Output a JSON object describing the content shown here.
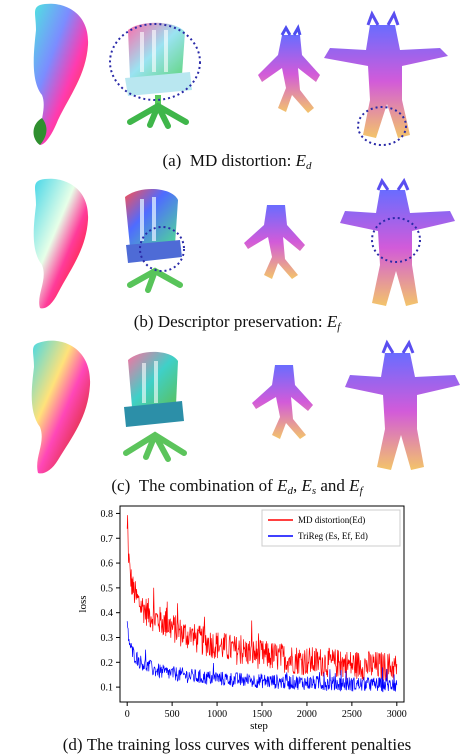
{
  "panels": [
    {
      "label": "(a)",
      "text": "MD distortion: ",
      "sym": "E",
      "sub": "d"
    },
    {
      "label": "(b)",
      "text": "Descriptor preservation: ",
      "sym": "E",
      "sub": "f"
    },
    {
      "label": "(c)",
      "text": "The combination of ",
      "sym1": "E",
      "sub1": "d",
      "sep1": ", ",
      "sym2": "E",
      "sub2": "s",
      "sep2": " and ",
      "sym3": "E",
      "sub3": "f"
    },
    {
      "label": "(d)",
      "text": "The training loss curves with different penalties"
    }
  ],
  "chart_data": {
    "type": "line",
    "xlabel": "step",
    "ylabel": "loss",
    "xlim": [
      -80,
      3080
    ],
    "ylim": [
      0.04,
      0.83
    ],
    "xticks": [
      0,
      500,
      1000,
      1500,
      2000,
      2500,
      3000
    ],
    "yticks": [
      0.1,
      0.2,
      0.3,
      0.4,
      0.5,
      0.6,
      0.7,
      0.8
    ],
    "legend_position": "top-right",
    "series": [
      {
        "name": "MD distortion(Ed)",
        "color": "#ff0000",
        "x": [
          0,
          30,
          60,
          100,
          150,
          200,
          300,
          400,
          500,
          600,
          800,
          1000,
          1200,
          1500,
          1800,
          2000,
          2200,
          2500,
          2800,
          3000
        ],
        "y": [
          0.72,
          0.56,
          0.5,
          0.46,
          0.43,
          0.41,
          0.38,
          0.36,
          0.34,
          0.32,
          0.29,
          0.27,
          0.25,
          0.23,
          0.215,
          0.205,
          0.2,
          0.19,
          0.185,
          0.18
        ],
        "spread": 0.06
      },
      {
        "name": "TriReg (Es, Ef, Ed)",
        "color": "#0000ff",
        "x": [
          0,
          30,
          60,
          100,
          150,
          200,
          300,
          400,
          500,
          600,
          800,
          1000,
          1200,
          1500,
          1800,
          2000,
          2200,
          2500,
          2800,
          3000
        ],
        "y": [
          0.34,
          0.27,
          0.24,
          0.22,
          0.2,
          0.19,
          0.17,
          0.16,
          0.155,
          0.15,
          0.14,
          0.135,
          0.13,
          0.125,
          0.12,
          0.118,
          0.115,
          0.112,
          0.11,
          0.108
        ],
        "spread": 0.03
      }
    ]
  }
}
